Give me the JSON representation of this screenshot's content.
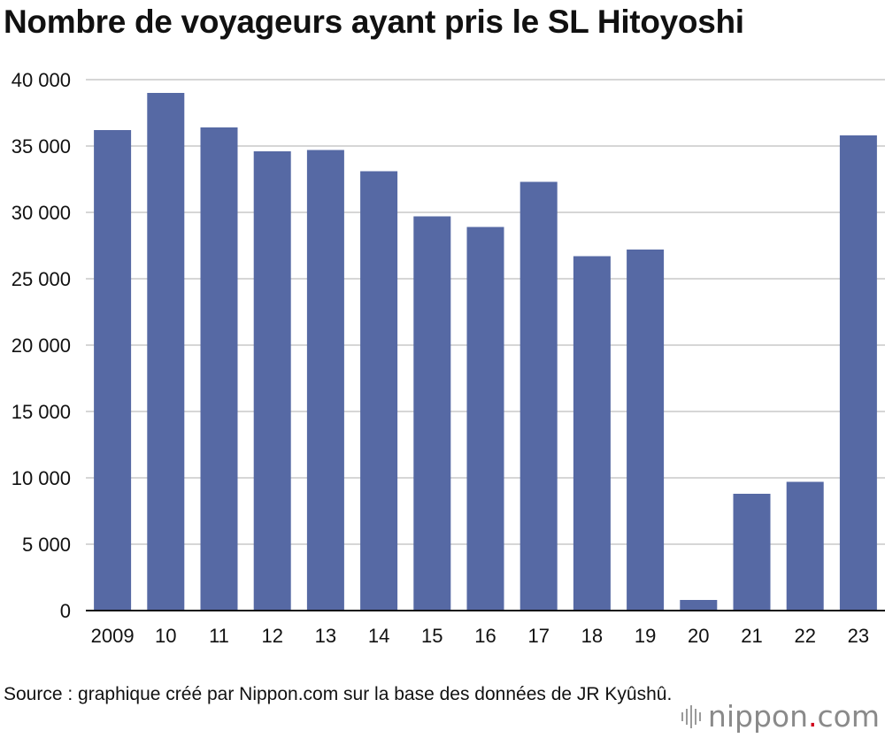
{
  "title": "Nombre de voyageurs ayant pris le SL Hitoyoshi",
  "source": "Source : graphique créé par Nippon.com sur la base des données de JR Kyûshû.",
  "logo": {
    "brand": "nippon",
    "dot": ".",
    "suffix": "com"
  },
  "colors": {
    "bar": "#5669a4",
    "grid": "#c8c8c8",
    "axis": "#111111"
  },
  "chart_data": {
    "type": "bar",
    "categories": [
      "2009",
      "10",
      "11",
      "12",
      "13",
      "14",
      "15",
      "16",
      "17",
      "18",
      "19",
      "20",
      "21",
      "22",
      "23"
    ],
    "values": [
      36200,
      39000,
      36400,
      34600,
      34700,
      33100,
      29700,
      28900,
      32300,
      26700,
      27200,
      800,
      8800,
      9700,
      35800
    ],
    "ylim": [
      0,
      40000
    ],
    "yticks": [
      0,
      5000,
      10000,
      15000,
      20000,
      25000,
      30000,
      35000,
      40000
    ],
    "ytick_labels": [
      "0",
      "5 000",
      "10 000",
      "15 000",
      "20 000",
      "25 000",
      "30 000",
      "35 000",
      "40 000"
    ],
    "grid": true,
    "legend": "none"
  }
}
